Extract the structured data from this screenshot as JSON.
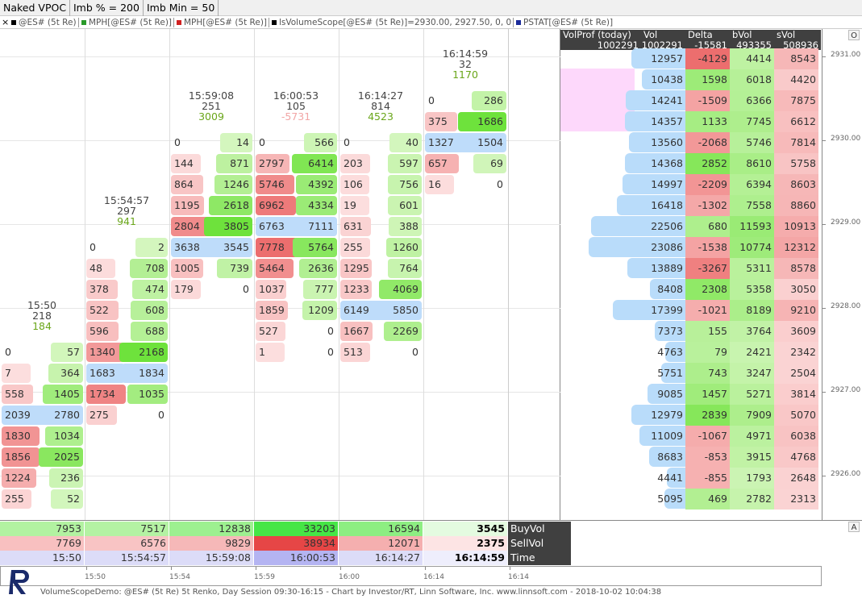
{
  "toolbar": [
    "Naked VPOC",
    "Imb % = 200",
    "Imb Min = 50"
  ],
  "legend": [
    {
      "label": "@ES# (5t Re)",
      "color": "#000000"
    },
    {
      "label": "MPH[@ES# (5t Re)]",
      "color": "#2a9a2a"
    },
    {
      "label": "MPH[@ES# (5t Re)]",
      "color": "#d02020"
    },
    {
      "label": "lsVolumeScope[@ES# (5t Re)]=2930.00, 2927.50, 0, 0",
      "color": "#000000"
    },
    {
      "label": "PSTAT[@ES# (5t Re)]",
      "color": "#1a2a9a"
    }
  ],
  "columns": [
    {
      "time": "15:50",
      "count": "218",
      "delta": "184",
      "cells": [
        null,
        null,
        null,
        null,
        null,
        null,
        null,
        null,
        null,
        null,
        null,
        null,
        null,
        null,
        [
          "0",
          "57"
        ],
        [
          "7",
          "364"
        ],
        [
          "558",
          "1405"
        ],
        [
          "2039",
          "2780"
        ],
        [
          "1830",
          "1034"
        ],
        [
          "1856",
          "2025"
        ],
        [
          "1224",
          "236"
        ],
        [
          "255",
          "52"
        ]
      ]
    },
    {
      "time": "15:54:57",
      "count": "297",
      "delta": "941",
      "cells": [
        null,
        null,
        null,
        null,
        null,
        null,
        null,
        null,
        null,
        [
          "0",
          "2"
        ],
        [
          "48",
          "708"
        ],
        [
          "378",
          "474"
        ],
        [
          "522",
          "608"
        ],
        [
          "596",
          "688"
        ],
        [
          "1340",
          "2168"
        ],
        [
          "1683",
          "1834"
        ],
        [
          "1734",
          "1035"
        ],
        [
          "275",
          "0"
        ],
        null,
        null,
        null,
        null
      ]
    },
    {
      "time": "15:59:08",
      "count": "251",
      "delta": "3009",
      "cells": [
        null,
        null,
        null,
        null,
        [
          "0",
          "14"
        ],
        [
          "144",
          "871"
        ],
        [
          "864",
          "1246"
        ],
        [
          "1195",
          "2618"
        ],
        [
          "2804",
          "3805"
        ],
        [
          "3638",
          "3545"
        ],
        [
          "1005",
          "739"
        ],
        [
          "179",
          "0"
        ],
        null,
        null,
        null,
        null,
        null,
        null,
        null,
        null,
        null,
        null
      ]
    },
    {
      "time": "16:00:53",
      "count": "105",
      "delta": "-5731",
      "cells": [
        null,
        null,
        null,
        null,
        [
          "0",
          "566"
        ],
        [
          "2797",
          "6414"
        ],
        [
          "5746",
          "4392"
        ],
        [
          "6962",
          "4334"
        ],
        [
          "6763",
          "7111"
        ],
        [
          "7778",
          "5764"
        ],
        [
          "5464",
          "2636"
        ],
        [
          "1037",
          "777"
        ],
        [
          "1859",
          "1209"
        ],
        [
          "527",
          "0"
        ],
        [
          "1",
          "0"
        ],
        null,
        null,
        null,
        null,
        null,
        null,
        null
      ]
    },
    {
      "time": "16:14:27",
      "count": "814",
      "delta": "4523",
      "cells": [
        null,
        null,
        null,
        null,
        [
          "0",
          "40"
        ],
        [
          "203",
          "597"
        ],
        [
          "106",
          "756"
        ],
        [
          "19",
          "601"
        ],
        [
          "631",
          "388"
        ],
        [
          "255",
          "1260"
        ],
        [
          "1295",
          "764"
        ],
        [
          "1233",
          "4069"
        ],
        [
          "6149",
          "5850"
        ],
        [
          "1667",
          "2269"
        ],
        [
          "513",
          "0"
        ],
        null,
        null,
        null,
        null,
        null,
        null,
        null
      ]
    },
    {
      "time": "16:14:59",
      "count": "32",
      "delta": "1170",
      "cells": [
        null,
        null,
        [
          "0",
          "286"
        ],
        [
          "375",
          "1686"
        ],
        [
          "1327",
          "1504"
        ],
        [
          "657",
          "69"
        ],
        [
          "16",
          "0"
        ],
        null,
        null,
        null,
        null,
        null,
        null,
        null,
        null,
        null,
        null,
        null,
        null,
        null,
        null,
        null
      ]
    }
  ],
  "profile": {
    "headers": [
      "VolProf (today)",
      "Vol",
      "Delta",
      "bVol",
      "sVol"
    ],
    "totals": [
      "1002291",
      "1002291",
      "-15581",
      "493355",
      "508936"
    ],
    "rows": [
      [
        "12957",
        "-4129",
        "4414",
        "8543"
      ],
      [
        "10438",
        "1598",
        "6018",
        "4420"
      ],
      [
        "14241",
        "-1509",
        "6366",
        "7875"
      ],
      [
        "14357",
        "1133",
        "7745",
        "6612"
      ],
      [
        "13560",
        "-2068",
        "5746",
        "7814"
      ],
      [
        "14368",
        "2852",
        "8610",
        "5758"
      ],
      [
        "14997",
        "-2209",
        "6394",
        "8603"
      ],
      [
        "16418",
        "-1302",
        "7558",
        "8860"
      ],
      [
        "22506",
        "680",
        "11593",
        "10913"
      ],
      [
        "23086",
        "-1538",
        "10774",
        "12312"
      ],
      [
        "13889",
        "-3267",
        "5311",
        "8578"
      ],
      [
        "8408",
        "2308",
        "5358",
        "3050"
      ],
      [
        "17399",
        "-1021",
        "8189",
        "9210"
      ],
      [
        "7373",
        "155",
        "3764",
        "3609"
      ],
      [
        "4763",
        "79",
        "2421",
        "2342"
      ],
      [
        "5751",
        "743",
        "3247",
        "2504"
      ],
      [
        "9085",
        "1457",
        "5271",
        "3814"
      ],
      [
        "12979",
        "2839",
        "7909",
        "5070"
      ],
      [
        "11009",
        "-1067",
        "4971",
        "6038"
      ],
      [
        "8683",
        "-853",
        "3915",
        "4768"
      ],
      [
        "4441",
        "-855",
        "1793",
        "2648"
      ],
      [
        "5095",
        "469",
        "2782",
        "2313"
      ]
    ]
  },
  "price_axis": {
    "ylim": [
      2925.47,
      2931.33
    ],
    "yticks": [
      {
        "value": 2931,
        "label": "2931.00"
      },
      {
        "value": 2930,
        "label": "2930.00"
      },
      {
        "value": 2929,
        "label": "2929.00"
      },
      {
        "value": 2928,
        "label": "2928.00"
      },
      {
        "value": 2927,
        "label": "2927.00"
      },
      {
        "value": 2926,
        "label": "2926.00"
      }
    ]
  },
  "stats": {
    "labels": [
      "BuyVol",
      "SellVol",
      "Time"
    ],
    "rows": [
      [
        "7953",
        "7517",
        "12838",
        "33203",
        "16594",
        "3545"
      ],
      [
        "7769",
        "6576",
        "9829",
        "38934",
        "12071",
        "2375"
      ],
      [
        "15:50",
        "15:54:57",
        "15:59:08",
        "16:00:53",
        "16:14:27",
        "16:14:59"
      ]
    ]
  },
  "time_axis": [
    "15:50",
    "15:54",
    "15:59",
    "16:00",
    "16:14",
    "16:14"
  ],
  "corner_buttons": [
    "O",
    "A"
  ],
  "footer": "VolumeScopeDemo: @ES# (5t Re) 5t Renko, Day Session 09:30-16:15 - Chart by Investor/RT, Linn Software, Inc. www.linnsoft.com - 2018-10-02 10:04:38"
}
